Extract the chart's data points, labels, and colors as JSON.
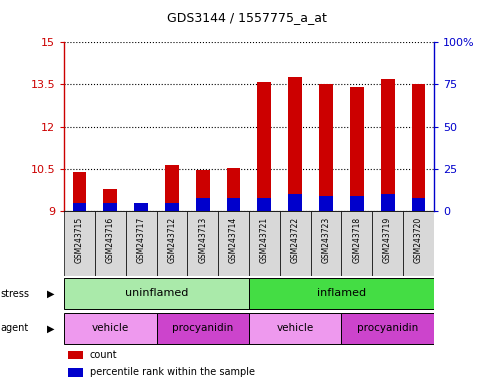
{
  "title": "GDS3144 / 1557775_a_at",
  "samples": [
    "GSM243715",
    "GSM243716",
    "GSM243717",
    "GSM243712",
    "GSM243713",
    "GSM243714",
    "GSM243721",
    "GSM243722",
    "GSM243723",
    "GSM243718",
    "GSM243719",
    "GSM243720"
  ],
  "count_values": [
    10.4,
    9.8,
    9.15,
    10.65,
    10.45,
    10.55,
    13.6,
    13.75,
    13.5,
    13.4,
    13.7,
    13.5
  ],
  "percentile_values_pct": [
    5,
    5,
    5,
    5,
    8,
    8,
    8,
    10,
    9,
    9,
    10,
    8
  ],
  "y_min": 9.0,
  "y_max": 15.0,
  "y_ticks": [
    9.0,
    10.5,
    12.0,
    13.5,
    15.0
  ],
  "y_tick_labels": [
    "9",
    "10.5",
    "12",
    "13.5",
    "15"
  ],
  "y2_ticks": [
    0,
    25,
    50,
    75,
    100
  ],
  "y2_tick_labels": [
    "0",
    "25",
    "50",
    "75",
    "100%"
  ],
  "bar_color_red": "#cc0000",
  "bar_color_blue": "#0000cc",
  "bar_width": 0.45,
  "stress_uninflamed_color": "#aaeaaa",
  "stress_uninflamed_label": "uninflamed",
  "stress_inflamed_color": "#44dd44",
  "stress_inflamed_label": "inflamed",
  "agent_vehicle_color": "#dd88ee",
  "agent_procyanidin_color": "#dd44dd",
  "agent_vehicle_label": "vehicle",
  "agent_procyanidin_label": "procyanidin",
  "stress_label": "stress",
  "agent_label": "agent",
  "legend_count": "count",
  "legend_percentile": "percentile rank within the sample",
  "agent_groups": [
    {
      "label": "vehicle",
      "start": 0,
      "end": 3
    },
    {
      "label": "procyanidin",
      "start": 3,
      "end": 6
    },
    {
      "label": "vehicle",
      "start": 6,
      "end": 9
    },
    {
      "label": "procyanidin",
      "start": 9,
      "end": 12
    }
  ]
}
